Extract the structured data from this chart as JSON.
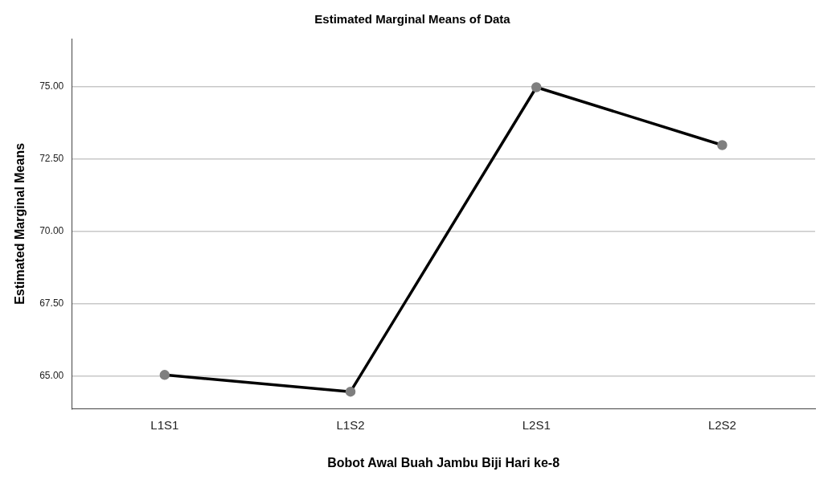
{
  "chart_data": {
    "type": "line",
    "title": "Estimated Marginal Means of Data",
    "xlabel": "Bobot Awal Buah Jambu Biji Hari ke-8",
    "ylabel": "Estimated Marginal Means",
    "categories": [
      "L1S1",
      "L1S2",
      "L2S1",
      "L2S2"
    ],
    "series": [
      {
        "color": "#000000",
        "values": [
          65.03,
          64.45,
          74.97,
          72.97
        ]
      }
    ],
    "ylim": [
      63.85,
      76.65
    ],
    "yticks": [
      {
        "value": 65,
        "label": "65.00"
      },
      {
        "value": 67.5,
        "label": "67.50"
      },
      {
        "value": 70,
        "label": "70.00"
      },
      {
        "value": 72.5,
        "label": "72.50"
      },
      {
        "value": 75,
        "label": "75.00"
      }
    ],
    "grid": "y",
    "legend": false,
    "marker": "circle",
    "line_style": "solid"
  }
}
